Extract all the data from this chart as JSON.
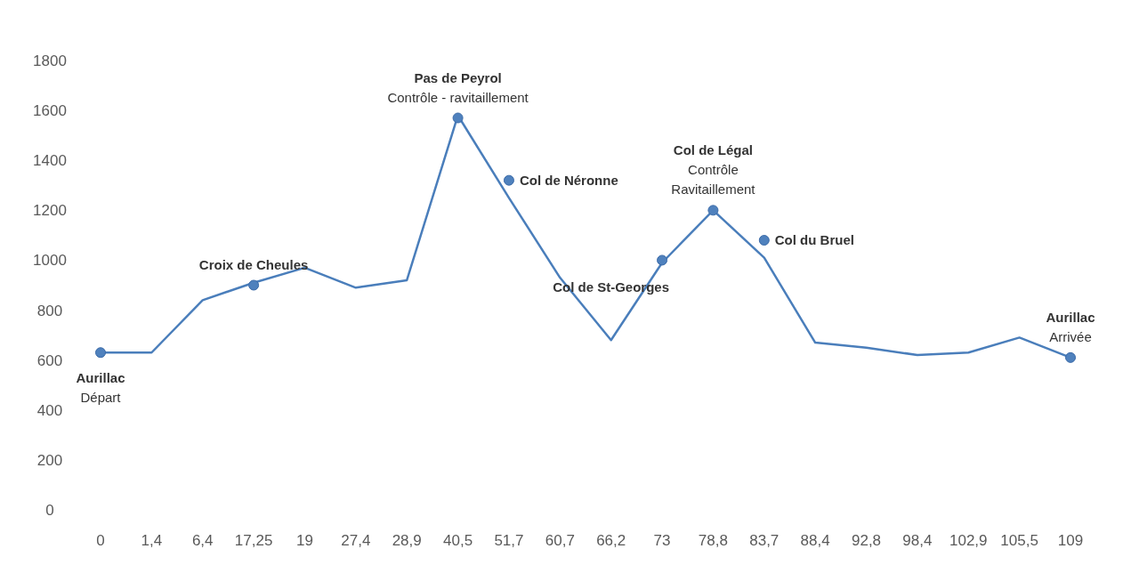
{
  "chart_data": {
    "type": "line",
    "categories": [
      "0",
      "1,4",
      "6,4",
      "17,25",
      "19",
      "27,4",
      "28,9",
      "40,5",
      "51,7",
      "60,7",
      "66,2",
      "73",
      "78,8",
      "83,7",
      "88,4",
      "92,8",
      "98,4",
      "102,9",
      "105,5",
      "109"
    ],
    "series": [
      {
        "color": "#4a7ebb",
        "values": [
          630,
          630,
          840,
          910,
          970,
          890,
          920,
          1580,
          1250,
          930,
          680,
          990,
          1200,
          1010,
          670,
          650,
          620,
          630,
          690,
          610
        ]
      },
      {
        "type": "scatter",
        "color": "#4f81bd",
        "marker": "circle",
        "x": [
          "0",
          "17,25",
          "40,5",
          "51,7",
          "73",
          "78,8",
          "83,7",
          "109"
        ],
        "values": [
          630,
          900,
          1570,
          1320,
          1000,
          1200,
          1080,
          610
        ]
      }
    ],
    "ylim": [
      0,
      1800
    ],
    "yticks": [
      0,
      200,
      400,
      600,
      800,
      1000,
      1200,
      1400,
      1600,
      1800
    ],
    "grid": false,
    "annotations": [
      {
        "text": "Aurillac\nDépart",
        "x": "0",
        "y": 630
      },
      {
        "text": "Croix de Cheules",
        "x": "17,25",
        "y": 900
      },
      {
        "text": "Pas de Peyrol\nContrôle - ravitaillement",
        "x": "40,5",
        "y": 1570
      },
      {
        "text": "Col de Néronne",
        "x": "51,7",
        "y": 1320
      },
      {
        "text": "Col de St-Georges",
        "x": "73",
        "y": 1000
      },
      {
        "text": "Col de Légal\nContrôle\nRavitaillement",
        "x": "78,8",
        "y": 1200
      },
      {
        "text": "Col du Bruel",
        "x": "83,7",
        "y": 1080
      },
      {
        "text": "Aurillac\nArrivée",
        "x": "109",
        "y": 610
      }
    ]
  }
}
